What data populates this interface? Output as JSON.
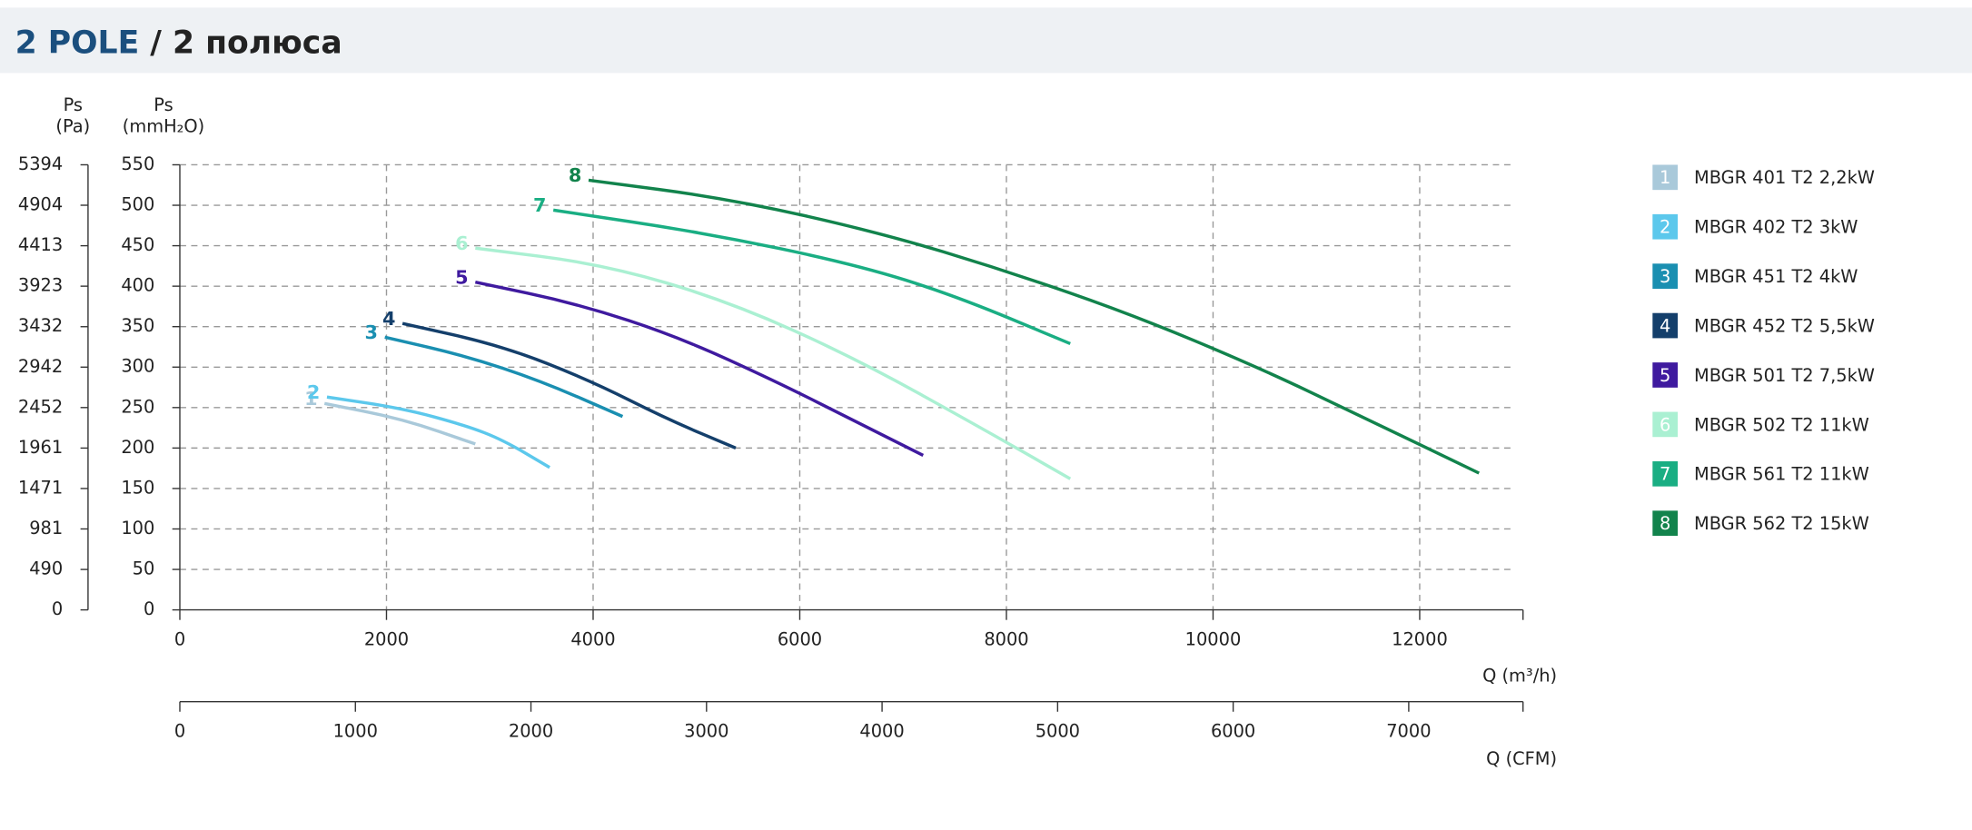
{
  "chart_data": {
    "type": "line",
    "title": [
      "2 POLE",
      "/ 2 полюса"
    ],
    "y_label": [
      "Ps",
      "(mmH₂O)"
    ],
    "y2_label": [
      "Ps",
      "(Pa)"
    ],
    "x_label": "Q (m³/h)",
    "x2_label": "Q (CFM)",
    "xlim": [
      0,
      13000
    ],
    "xticks": [
      0,
      2000,
      4000,
      6000,
      8000,
      10000,
      12000
    ],
    "x2lim": [
      0,
      7651
    ],
    "x2ticks": [
      0,
      1000,
      2000,
      3000,
      4000,
      5000,
      6000,
      7000
    ],
    "ylim": [
      0,
      550
    ],
    "yticks": [
      0,
      50,
      100,
      150,
      200,
      250,
      300,
      350,
      400,
      450,
      500,
      550
    ],
    "y2lim": [
      0,
      5394
    ],
    "y2ticks": [
      0,
      490,
      981,
      1471,
      1961,
      2452,
      2942,
      3432,
      3923,
      4413,
      4904,
      5394
    ],
    "grid": true,
    "legend": "right",
    "series": [
      {
        "name": "MBGR 401 T2 2,2kW",
        "label": "1",
        "color": "#a9c9da",
        "x": [
          1400,
          2155,
          2860
        ],
        "values": [
          255,
          236,
          205
        ]
      },
      {
        "name": "MBGR 402 T2 3kW",
        "label": "2",
        "color": "#5cc8ec",
        "x": [
          1424,
          2155,
          2763,
          3128,
          3579
        ],
        "values": [
          263,
          249,
          228,
          210,
          176
        ]
      },
      {
        "name": "MBGR 451 T2 4kW",
        "label": "3",
        "color": "#1a8fb1",
        "x": [
          1984,
          2763,
          3494,
          4285
        ],
        "values": [
          337,
          314,
          283,
          239
        ]
      },
      {
        "name": "MBGR 452 T2 5,5kW",
        "label": "4",
        "color": "#143f6b",
        "x": [
          2155,
          3128,
          3980,
          4711,
          5380
        ],
        "values": [
          354,
          326,
          283,
          236,
          200
        ]
      },
      {
        "name": "MBGR 501 T2 7,5kW",
        "label": "5",
        "color": "#3f1a9f",
        "x": [
          2860,
          3859,
          4833,
          5807,
          6537,
          7194
        ],
        "values": [
          405,
          378,
          337,
          280,
          233,
          191
        ]
      },
      {
        "name": "MBGR 502 T2 11kW",
        "label": "6",
        "color": "#aaf0d2",
        "x": [
          2860,
          4102,
          5319,
          6537,
          7754,
          8618
        ],
        "values": [
          447,
          427,
          381,
          311,
          225,
          162
        ]
      },
      {
        "name": "MBGR 561 T2 11kW",
        "label": "7",
        "color": "#1aae83",
        "x": [
          3615,
          5076,
          6537,
          7511,
          8618
        ],
        "values": [
          494,
          466,
          427,
          388,
          329
        ]
      },
      {
        "name": "MBGR 562 T2 15kW",
        "label": "8",
        "color": "#12834c",
        "x": [
          3956,
          5319,
          6780,
          7997,
          9214,
          10432,
          11405,
          12574
        ],
        "values": [
          531,
          508,
          466,
          419,
          365,
          300,
          241,
          169
        ]
      }
    ]
  }
}
